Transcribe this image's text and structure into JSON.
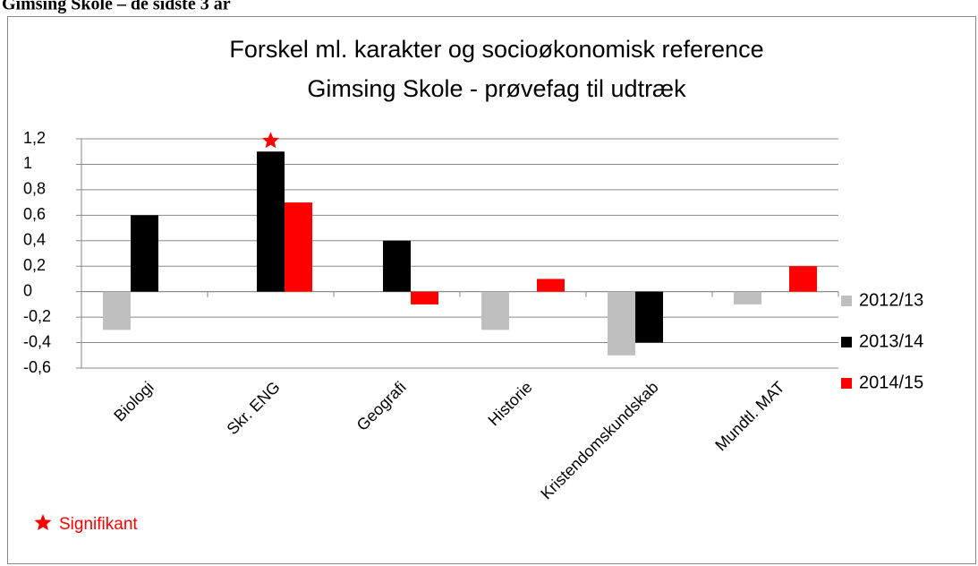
{
  "header": {
    "title": "Gimsing Skole – de sidste 3 år"
  },
  "chart_data": {
    "type": "bar",
    "title": "Forskel ml. karakter og socioøkonomisk reference",
    "subtitle": "Gimsing Skole - prøvefag til udtræk",
    "categories": [
      "Biologi",
      "Skr. ENG",
      "Geografi",
      "Historie",
      "Kristendomskundskab",
      "Mundtl. MAT"
    ],
    "series": [
      {
        "name": "2012/13",
        "color": "#bfbfbf",
        "values": [
          -0.3,
          null,
          null,
          -0.3,
          -0.5,
          -0.1
        ]
      },
      {
        "name": "2013/14",
        "color": "#000000",
        "values": [
          0.6,
          1.1,
          0.4,
          null,
          -0.4,
          null
        ]
      },
      {
        "name": "2014/15",
        "color": "#ff0000",
        "values": [
          null,
          0.7,
          -0.1,
          0.1,
          null,
          0.2
        ]
      }
    ],
    "ylim": [
      -0.6,
      1.2
    ],
    "yticks": [
      {
        "value": -0.6,
        "label": "-0,6"
      },
      {
        "value": -0.4,
        "label": "-0,4"
      },
      {
        "value": -0.2,
        "label": "-0,2"
      },
      0,
      {
        "value": 0.2,
        "label": "0,2"
      },
      {
        "value": 0.4,
        "label": "0,4"
      },
      {
        "value": 0.6,
        "label": "0,6"
      },
      {
        "value": 0.8,
        "label": "0,8"
      },
      1,
      {
        "value": 1.2,
        "label": "1,2"
      }
    ],
    "grid": true,
    "legend": "right",
    "significant": [
      {
        "series": 1,
        "index": 1
      }
    ],
    "annotation": "Signifikant",
    "annotation_color": "#ff0000"
  }
}
